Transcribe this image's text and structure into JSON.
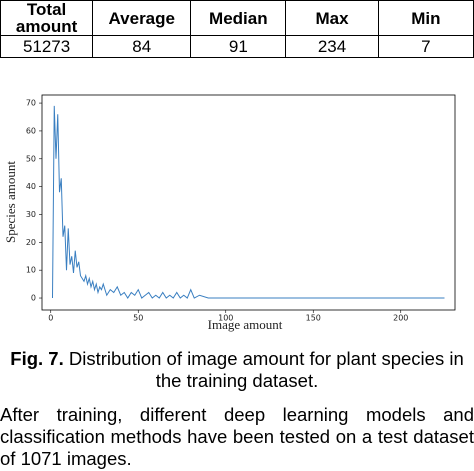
{
  "table": {
    "headers": [
      "Total amount",
      "Average",
      "Median",
      "Max",
      "Min"
    ],
    "rows": [
      [
        51273,
        84,
        91,
        234,
        7
      ]
    ]
  },
  "chart_data": {
    "type": "line",
    "xlabel": "Image amount",
    "ylabel": "Species amount",
    "x": [
      1,
      2,
      3,
      4,
      5,
      6,
      7,
      8,
      9,
      10,
      11,
      12,
      13,
      14,
      15,
      16,
      17,
      18,
      19,
      20,
      21,
      22,
      23,
      24,
      25,
      26,
      27,
      28,
      29,
      30,
      32,
      34,
      36,
      38,
      40,
      42,
      44,
      46,
      48,
      50,
      52,
      54,
      56,
      58,
      60,
      62,
      64,
      66,
      68,
      70,
      72,
      74,
      76,
      78,
      80,
      82,
      85,
      90,
      100,
      150,
      200,
      225
    ],
    "series": [
      {
        "color": "#3a7fc1",
        "values": [
          0,
          69,
          50,
          66,
          38,
          43,
          22,
          26,
          10,
          25,
          12,
          15,
          9,
          17,
          11,
          13,
          8,
          7,
          6,
          8,
          5,
          7,
          4,
          6,
          3,
          5,
          2,
          4,
          3,
          5,
          1,
          3,
          2,
          4,
          1,
          2,
          0,
          2,
          1,
          3,
          0,
          1,
          2,
          0,
          1,
          0,
          2,
          0,
          1,
          0,
          2,
          0,
          1,
          0,
          3,
          0,
          1,
          0,
          0,
          0,
          0,
          0
        ]
      }
    ],
    "xlim": [
      -5,
      231
    ],
    "ylim": [
      -4.3,
      72.9
    ],
    "xticks": [
      0,
      50,
      100,
      150,
      200
    ],
    "yticks": [
      0,
      10,
      20,
      30,
      40,
      50,
      60,
      70
    ]
  },
  "caption": {
    "label": "Fig. 7.",
    "text": "Distribution of image amount for plant species in the training dataset."
  },
  "paragraph": "After training, different deep learning models and classification methods have been tested on a test dataset of 1071 images."
}
